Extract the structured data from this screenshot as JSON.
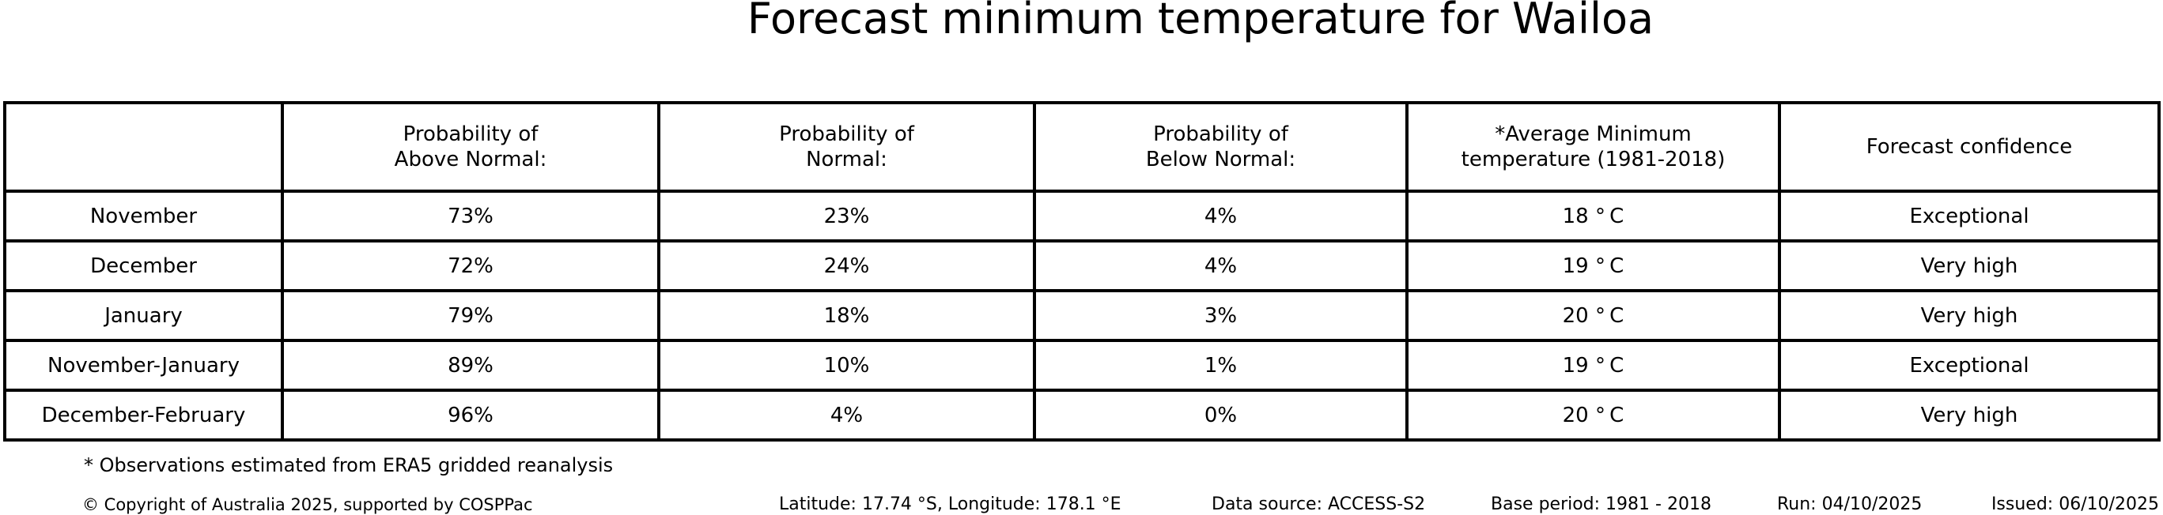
{
  "title": "Forecast minimum temperature for Wailoa",
  "table": {
    "columns": [
      "Probability of\nAbove Normal:",
      "Probability of\nNormal:",
      "Probability of\nBelow Normal:",
      "*Average Minimum\ntemperature (1981-2018)",
      "Forecast confidence"
    ],
    "rows": [
      {
        "period": "November",
        "above_normal": "73%",
        "normal": "23%",
        "below_normal": "4%",
        "avg_min_temp": "18 ° C",
        "confidence": "Exceptional"
      },
      {
        "period": "December",
        "above_normal": "72%",
        "normal": "24%",
        "below_normal": "4%",
        "avg_min_temp": "19 ° C",
        "confidence": "Very high"
      },
      {
        "period": "January",
        "above_normal": "79%",
        "normal": "18%",
        "below_normal": "3%",
        "avg_min_temp": "20 ° C",
        "confidence": "Very high"
      },
      {
        "period": "November-January",
        "above_normal": "89%",
        "normal": "10%",
        "below_normal": "1%",
        "avg_min_temp": "19 ° C",
        "confidence": "Exceptional"
      },
      {
        "period": "December-February",
        "above_normal": "96%",
        "normal": "4%",
        "below_normal": "0%",
        "avg_min_temp": "20 ° C",
        "confidence": "Very high"
      }
    ]
  },
  "footnote": "* Observations estimated from ERA5 gridded reanalysis",
  "footer": {
    "copyright": "© Copyright of Australia 2025, supported by COSPPac",
    "location": "Latitude: 17.74 °S, Longitude: 178.1 °E",
    "data_source": "Data source: ACCESS-S2",
    "base_period": "Base period: 1981 - 2018",
    "run": "Run: 04/10/2025",
    "issued": "Issued: 06/10/2025"
  },
  "colors": {
    "background": "#ffffff",
    "text": "#000000",
    "border": "#000000"
  },
  "chart_data": {
    "type": "table",
    "title": "Forecast minimum temperature for Wailoa",
    "columns": [
      "",
      "Probability of Above Normal:",
      "Probability of Normal:",
      "Probability of Below Normal:",
      "*Average Minimum temperature (1981-2018)",
      "Forecast confidence"
    ],
    "categories": [
      "November",
      "December",
      "January",
      "November-January",
      "December-February"
    ],
    "rows": [
      [
        "November",
        "73%",
        "23%",
        "4%",
        "18 °C",
        "Exceptional"
      ],
      [
        "December",
        "72%",
        "24%",
        "4%",
        "19 °C",
        "Very high"
      ],
      [
        "January",
        "79%",
        "18%",
        "3%",
        "20 °C",
        "Very high"
      ],
      [
        "November-January",
        "89%",
        "10%",
        "1%",
        "19 °C",
        "Exceptional"
      ],
      [
        "December-February",
        "96%",
        "4%",
        "0%",
        "20 °C",
        "Very high"
      ]
    ],
    "above_normal_pct": [
      73,
      72,
      79,
      89,
      96
    ],
    "normal_pct": [
      23,
      24,
      18,
      10,
      4
    ],
    "below_normal_pct": [
      4,
      4,
      3,
      1,
      0
    ],
    "avg_min_temp_c": [
      18,
      19,
      20,
      19,
      20
    ],
    "confidence": [
      "Exceptional",
      "Very high",
      "Very high",
      "Exceptional",
      "Very high"
    ],
    "footnote": "* Observations estimated from ERA5 gridded reanalysis"
  }
}
